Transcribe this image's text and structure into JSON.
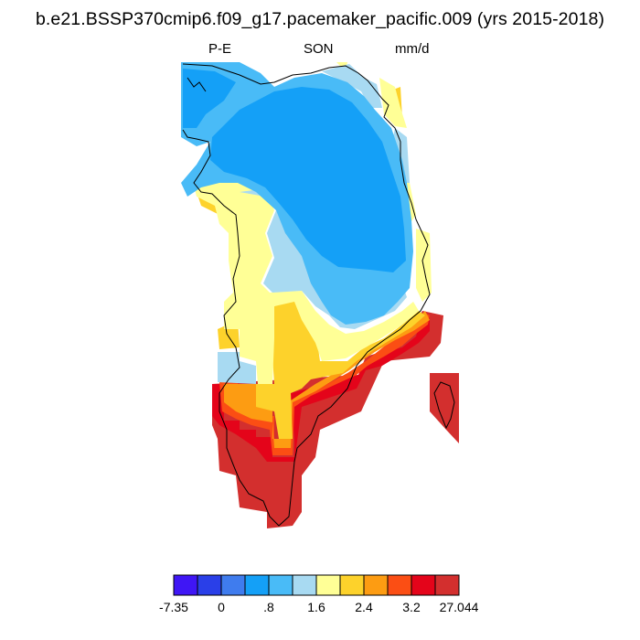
{
  "title": "b.e21.BSSP370cmip6.f09_g17.pacemaker_pacific.009 (yrs 2015-2018)",
  "subtitle": {
    "left": "P-E",
    "center": "SON",
    "right": "mm/d"
  },
  "colorbar": {
    "colors": [
      "#3f16f5",
      "#2a3fe8",
      "#3f7cee",
      "#14a0f7",
      "#49bbf7",
      "#a8daf2",
      "#ffff96",
      "#fdd22b",
      "#fd9c12",
      "#fb4e14",
      "#e4041a",
      "#d32f2e"
    ],
    "labels": [
      "-7.35",
      "0",
      ".8",
      "1.6",
      "2.4",
      "3.2",
      "27.044"
    ]
  },
  "map": {
    "region": "Greenland",
    "layer_colors": {
      "dark_red": "#d32f2e",
      "red": "#e4041a",
      "orange_red": "#fb4e14",
      "orange": "#fd9c12",
      "gold": "#fdd22b",
      "yellow": "#ffff96",
      "pale_blue": "#a8daf2",
      "light_blue": "#49bbf7",
      "blue": "#14a0f7"
    }
  }
}
